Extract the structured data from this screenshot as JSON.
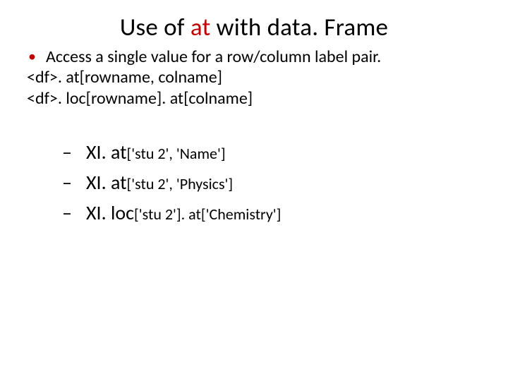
{
  "colors": {
    "accent": "#c00000",
    "text": "#000000",
    "background": "#ffffff"
  },
  "title": {
    "part1": "Use of ",
    "accent": "at",
    "part2": " with data. Frame"
  },
  "body": {
    "bullet": "Access a single value for a row/column label pair.",
    "line1": "<df>. at[rowname, colname]",
    "line2": "<df>. loc[rowname]. at[colname]"
  },
  "examples": [
    {
      "main": "XI. at",
      "args": "['stu 2', 'Name']"
    },
    {
      "main": "XI. at",
      "args": "['stu 2', 'Physics']"
    },
    {
      "main": "XI. loc",
      "args": "['stu 2']. at['Chemistry']"
    }
  ]
}
